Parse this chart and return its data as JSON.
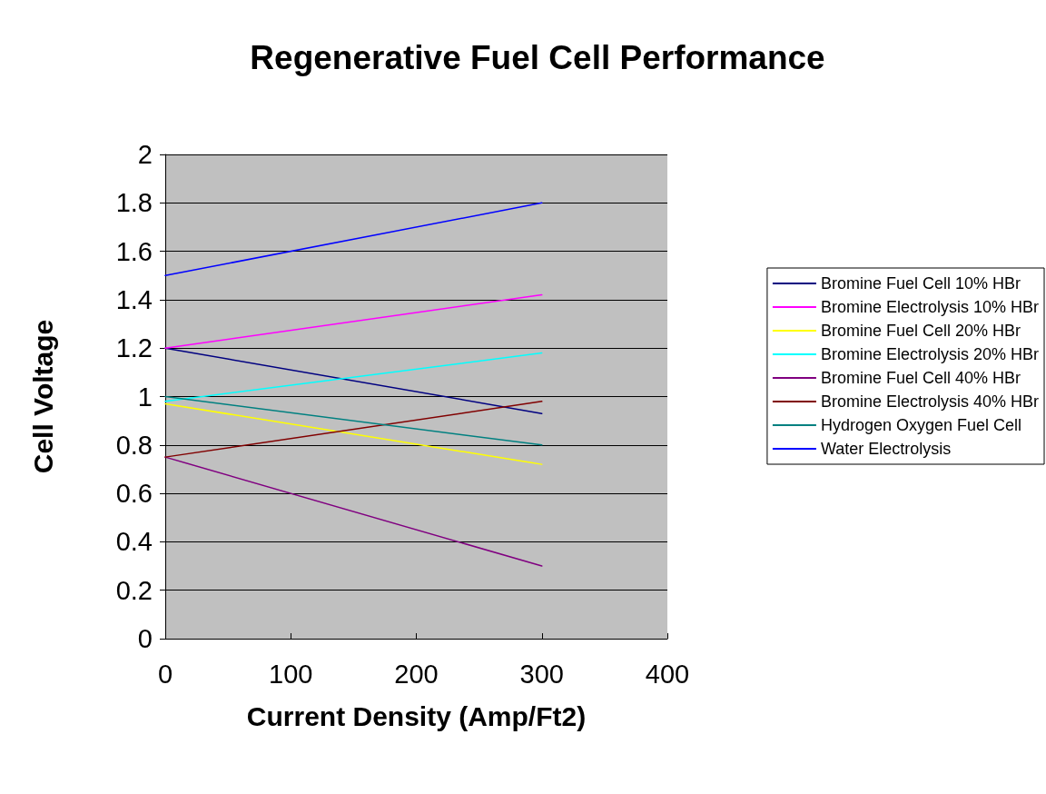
{
  "chart_data": {
    "type": "line",
    "title": "Regenerative Fuel Cell Performance",
    "xlabel": "Current Density (Amp/Ft2)",
    "ylabel": "Cell Voltage",
    "x": [
      0,
      300
    ],
    "series": [
      {
        "name": "Bromine Fuel Cell 10% HBr",
        "color": "#000080",
        "values": [
          1.2,
          0.93
        ]
      },
      {
        "name": "Bromine Electrolysis 10% HBr",
        "color": "#ff00ff",
        "values": [
          1.2,
          1.42
        ]
      },
      {
        "name": "Bromine Fuel Cell 20% HBr",
        "color": "#ffff00",
        "values": [
          0.97,
          0.72
        ]
      },
      {
        "name": "Bromine Electrolysis 20% HBr",
        "color": "#00ffff",
        "values": [
          0.98,
          1.18
        ]
      },
      {
        "name": "Bromine Fuel Cell 40% HBr",
        "color": "#800080",
        "values": [
          0.75,
          0.3
        ]
      },
      {
        "name": "Bromine Electrolysis 40% HBr",
        "color": "#800000",
        "values": [
          0.75,
          0.98
        ]
      },
      {
        "name": "Hydrogen Oxygen Fuel Cell",
        "color": "#008080",
        "values": [
          1.0,
          0.8
        ]
      },
      {
        "name": "Water Electrolysis",
        "color": "#0000ff",
        "values": [
          1.5,
          1.8
        ]
      }
    ],
    "xlim": [
      0,
      400
    ],
    "xticks": [
      0,
      100,
      200,
      300,
      400
    ],
    "ylim": [
      0,
      2
    ],
    "yticks": [
      0,
      0.2,
      0.4,
      0.6,
      0.8,
      1,
      1.2,
      1.4,
      1.6,
      1.8,
      2
    ],
    "grid": "y",
    "legend": "right",
    "marker": "none",
    "line_style": "solid"
  }
}
